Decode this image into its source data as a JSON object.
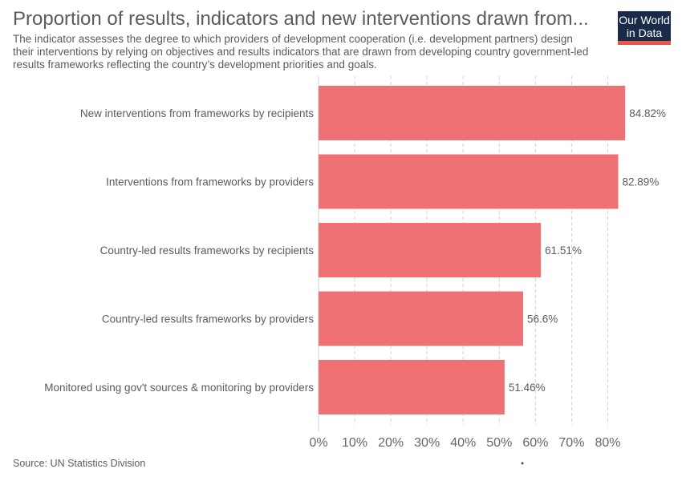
{
  "header": {
    "title": "Proportion of results, indicators and new interventions drawn from...",
    "subtitle": "The indicator assesses the degree to which providers of development cooperation (i.e. development partners) design their interventions by relying on objectives and results indicators that are drawn from developing country government-led results frameworks reflecting the country’s development priorities and goals."
  },
  "logo": {
    "line1": "Our World",
    "line2": "in Data",
    "bg_color": "#1a2b4a",
    "accent_color": "#e6574a"
  },
  "footer": {
    "source": "Source: UN Statistics Division",
    "dot": "•"
  },
  "chart_data": {
    "type": "bar",
    "orientation": "horizontal",
    "categories": [
      "New interventions from frameworks by recipients",
      "Interventions from frameworks by providers",
      "Country-led results frameworks by recipients",
      "Country-led results frameworks by providers",
      "Monitored using gov't sources & monitoring by providers"
    ],
    "values": [
      84.82,
      82.89,
      61.51,
      56.6,
      51.46
    ],
    "value_labels": [
      "84.82%",
      "82.89%",
      "61.51%",
      "56.6%",
      "51.46%"
    ],
    "xlim": [
      0,
      85
    ],
    "xticks": [
      0,
      10,
      20,
      30,
      40,
      50,
      60,
      70,
      80
    ],
    "xtick_labels": [
      "0%",
      "10%",
      "20%",
      "30%",
      "40%",
      "50%",
      "60%",
      "70%",
      "80%"
    ],
    "grid": true,
    "bar_color": "#f07174"
  }
}
